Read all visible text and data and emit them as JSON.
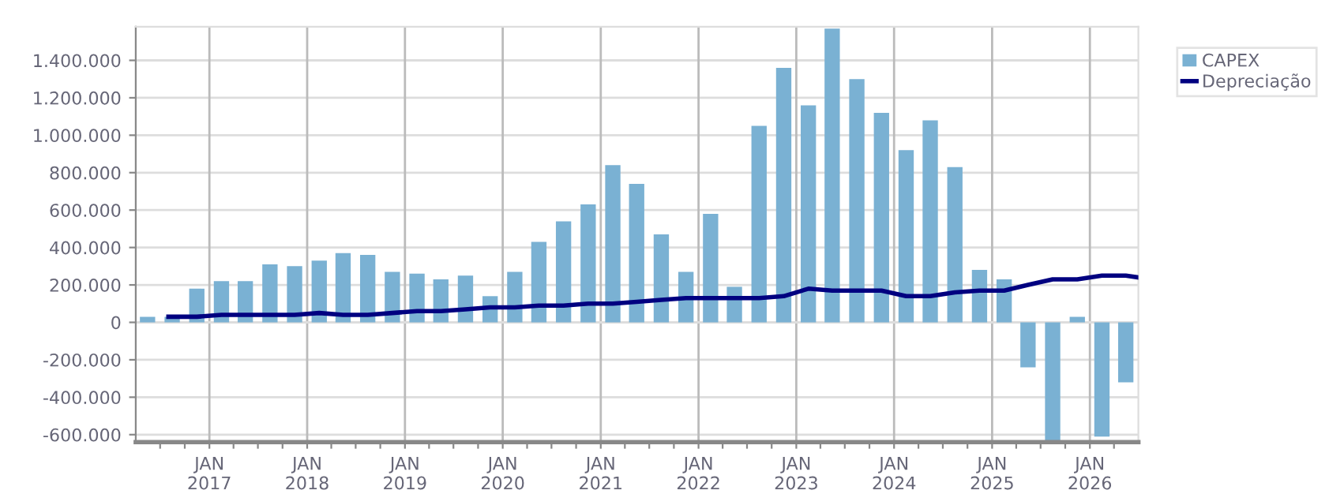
{
  "chart_data": {
    "type": "bar",
    "x": [
      "2016-05-15",
      "2016-08-15",
      "2016-11-15",
      "2017-02-15",
      "2017-05-15",
      "2017-08-15",
      "2017-11-15",
      "2018-02-15",
      "2018-05-15",
      "2018-08-15",
      "2018-11-15",
      "2019-02-15",
      "2019-05-15",
      "2019-08-15",
      "2019-11-15",
      "2020-02-15",
      "2020-05-15",
      "2020-08-15",
      "2020-11-15",
      "2021-02-15",
      "2021-05-15",
      "2021-08-15",
      "2021-11-15",
      "2022-02-15",
      "2022-05-15",
      "2022-08-15",
      "2022-11-15",
      "2023-02-15",
      "2023-05-15",
      "2023-08-15",
      "2023-11-15",
      "2024-02-15",
      "2024-05-15",
      "2024-08-15",
      "2024-11-15",
      "2025-02-15",
      "2025-05-15",
      "2025-08-15",
      "2025-11-15",
      "2026-02-15",
      "2026-05-15"
    ],
    "series": [
      {
        "name": "CAPEX",
        "color": "#7ab1d3",
        "values": [
          30000,
          30000,
          180000,
          220000,
          220000,
          310000,
          300000,
          330000,
          370000,
          360000,
          270000,
          260000,
          230000,
          250000,
          140000,
          270000,
          430000,
          540000,
          630000,
          840000,
          740000,
          470000,
          270000,
          580000,
          190000,
          1050000,
          1360000,
          1160000,
          1570000,
          1300000,
          1120000,
          920000,
          1080000,
          830000,
          280000,
          230000,
          -240000,
          -640000,
          30000,
          -610000,
          -320000
        ]
      },
      {
        "name": "Depreciação",
        "type": "line",
        "color": "#000080",
        "marker": "none",
        "line_style": "solid",
        "x": [
          "2016-08-01",
          "2016-11-15",
          "2017-02-15",
          "2017-05-15",
          "2017-08-15",
          "2017-11-15",
          "2018-02-15",
          "2018-05-15",
          "2018-08-15",
          "2018-11-15",
          "2019-02-15",
          "2019-05-15",
          "2019-08-15",
          "2019-11-15",
          "2020-02-15",
          "2020-05-15",
          "2020-08-15",
          "2020-11-15",
          "2021-02-15",
          "2021-05-15",
          "2021-08-15",
          "2021-11-15",
          "2022-02-15",
          "2022-05-15",
          "2022-08-15",
          "2022-11-15",
          "2023-02-15",
          "2023-05-15",
          "2023-08-15",
          "2023-11-15",
          "2024-02-15",
          "2024-05-15",
          "2024-08-15",
          "2024-11-15",
          "2025-02-15",
          "2025-05-15",
          "2025-08-15",
          "2025-11-15",
          "2026-02-15",
          "2026-05-15",
          "2026-07-01"
        ],
        "values": [
          30000,
          30000,
          40000,
          40000,
          40000,
          40000,
          50000,
          40000,
          40000,
          50000,
          60000,
          60000,
          70000,
          80000,
          80000,
          90000,
          90000,
          100000,
          100000,
          110000,
          120000,
          130000,
          130000,
          130000,
          130000,
          140000,
          180000,
          170000,
          170000,
          170000,
          140000,
          140000,
          160000,
          170000,
          170000,
          200000,
          230000,
          230000,
          250000,
          250000,
          240000
        ]
      }
    ],
    "xlim": [
      "2016-04-01",
      "2026-07-01"
    ],
    "xticks": [
      {
        "value": "2016-07-01",
        "label": null
      },
      {
        "value": "2016-10-01",
        "label": null
      },
      {
        "value": "2017-01-01",
        "label": "JAN\n2017"
      },
      {
        "value": "2017-04-01",
        "label": null
      },
      {
        "value": "2017-07-01",
        "label": null
      },
      {
        "value": "2017-10-01",
        "label": null
      },
      {
        "value": "2018-01-01",
        "label": "JAN\n2018"
      },
      {
        "value": "2018-04-01",
        "label": null
      },
      {
        "value": "2018-07-01",
        "label": null
      },
      {
        "value": "2018-10-01",
        "label": null
      },
      {
        "value": "2019-01-01",
        "label": "JAN\n2019"
      },
      {
        "value": "2019-04-01",
        "label": null
      },
      {
        "value": "2019-07-01",
        "label": null
      },
      {
        "value": "2019-10-01",
        "label": null
      },
      {
        "value": "2020-01-01",
        "label": "JAN\n2020"
      },
      {
        "value": "2020-04-01",
        "label": null
      },
      {
        "value": "2020-07-01",
        "label": null
      },
      {
        "value": "2020-10-01",
        "label": null
      },
      {
        "value": "2021-01-01",
        "label": "JAN\n2021"
      },
      {
        "value": "2021-04-01",
        "label": null
      },
      {
        "value": "2021-07-01",
        "label": null
      },
      {
        "value": "2021-10-01",
        "label": null
      },
      {
        "value": "2022-01-01",
        "label": "JAN\n2022"
      },
      {
        "value": "2022-04-01",
        "label": null
      },
      {
        "value": "2022-07-01",
        "label": null
      },
      {
        "value": "2022-10-01",
        "label": null
      },
      {
        "value": "2023-01-01",
        "label": "JAN\n2023"
      },
      {
        "value": "2023-04-01",
        "label": null
      },
      {
        "value": "2023-07-01",
        "label": null
      },
      {
        "value": "2023-10-01",
        "label": null
      },
      {
        "value": "2024-01-01",
        "label": "JAN\n2024"
      },
      {
        "value": "2024-04-01",
        "label": null
      },
      {
        "value": "2024-07-01",
        "label": null
      },
      {
        "value": "2024-10-01",
        "label": null
      },
      {
        "value": "2025-01-01",
        "label": "JAN\n2025"
      },
      {
        "value": "2025-04-01",
        "label": null
      },
      {
        "value": "2025-07-01",
        "label": null
      },
      {
        "value": "2025-10-01",
        "label": null
      },
      {
        "value": "2026-01-01",
        "label": "JAN\n2026"
      },
      {
        "value": "2026-04-01",
        "label": null
      }
    ],
    "ylim": [
      -640000,
      1580000
    ],
    "yticks": [
      {
        "value": -600000,
        "label": "-600.000"
      },
      {
        "value": -400000,
        "label": "-400.000"
      },
      {
        "value": -200000,
        "label": "-200.000"
      },
      0,
      {
        "value": 200000,
        "label": "200.000"
      },
      {
        "value": 400000,
        "label": "400.000"
      },
      {
        "value": 600000,
        "label": "600.000"
      },
      {
        "value": 800000,
        "label": "800.000"
      },
      {
        "value": 1000000,
        "label": "1.000.000"
      },
      {
        "value": 1200000,
        "label": "1.200.000"
      },
      {
        "value": 1400000,
        "label": "1.400.000"
      }
    ],
    "grid": true,
    "legend": "top right"
  }
}
